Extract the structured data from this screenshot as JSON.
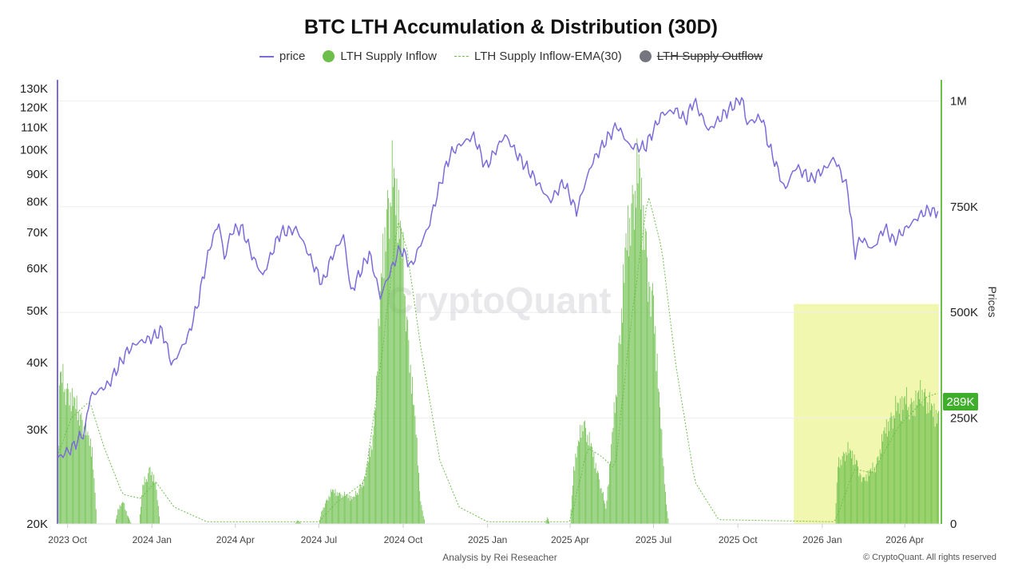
{
  "title": "BTC LTH Accumulation & Distribution (30D)",
  "legend": {
    "price": "price",
    "inflow": "LTH Supply Inflow",
    "ema": "LTH Supply Inflow-EMA(30)",
    "outflow": "LTH Supply Outflow"
  },
  "colors": {
    "price": "#7b6cd9",
    "inflow": "#6cbf4a",
    "ema": "#6cbf4a",
    "outflow": "#75757f",
    "highlight": "#f2f7b0",
    "badge": "#3fae2a"
  },
  "footer": {
    "analysis": "Analysis by Rei Reseacher",
    "copyright": "© CryptoQuant. All rights reserved"
  },
  "watermark": "CryptoQuant",
  "chart_data": {
    "type": "line+bar",
    "title": "BTC LTH Accumulation & Distribution (30D)",
    "xlabel": "",
    "x_ticks": [
      "2023 Oct",
      "2024 Jan",
      "2024 Apr",
      "2024 Jul",
      "2024 Oct",
      "2025 Jan",
      "2025 Apr",
      "2025 Jul",
      "2025 Oct",
      "2026 Jan",
      "2026 Apr"
    ],
    "x_range": [
      "2023-09-20",
      "2026-05-10"
    ],
    "left_axis": {
      "scale": "log",
      "range": [
        20000,
        135000
      ],
      "ticks": [
        "20K",
        "30K",
        "40K",
        "50K",
        "60K",
        "70K",
        "80K",
        "90K",
        "100K",
        "110K",
        "120K",
        "130K"
      ]
    },
    "right_axis": {
      "label": "Prices",
      "scale": "linear",
      "range": [
        0,
        1050000
      ],
      "ticks": [
        "0",
        "250K",
        "500K",
        "750K",
        "1M"
      ],
      "current_value_label": "289K"
    },
    "highlight_region": [
      "2025-12-01",
      "2026-05-08"
    ],
    "series": [
      {
        "name": "price",
        "type": "line",
        "axis": "left",
        "points": [
          [
            "2023-09-20",
            26500
          ],
          [
            "2023-10-05",
            27600
          ],
          [
            "2023-10-20",
            29800
          ],
          [
            "2023-10-25",
            34500
          ],
          [
            "2023-11-15",
            36500
          ],
          [
            "2023-12-05",
            42000
          ],
          [
            "2023-12-15",
            43500
          ],
          [
            "2024-01-01",
            44500
          ],
          [
            "2024-01-12",
            46000
          ],
          [
            "2024-01-23",
            39500
          ],
          [
            "2024-02-10",
            45000
          ],
          [
            "2024-02-20",
            51500
          ],
          [
            "2024-03-05",
            66500
          ],
          [
            "2024-03-14",
            73000
          ],
          [
            "2024-03-20",
            62500
          ],
          [
            "2024-03-28",
            70500
          ],
          [
            "2024-04-08",
            71500
          ],
          [
            "2024-04-19",
            63500
          ],
          [
            "2024-05-01",
            58000
          ],
          [
            "2024-05-20",
            70000
          ],
          [
            "2024-06-07",
            71000
          ],
          [
            "2024-06-25",
            61000
          ],
          [
            "2024-07-05",
            56000
          ],
          [
            "2024-07-15",
            63000
          ],
          [
            "2024-07-28",
            69000
          ],
          [
            "2024-08-05",
            54000
          ],
          [
            "2024-08-25",
            64000
          ],
          [
            "2024-09-06",
            53000
          ],
          [
            "2024-09-28",
            65500
          ],
          [
            "2024-10-10",
            60500
          ],
          [
            "2024-10-29",
            72000
          ],
          [
            "2024-11-12",
            88000
          ],
          [
            "2024-11-22",
            98500
          ],
          [
            "2024-12-05",
            103000
          ],
          [
            "2024-12-17",
            106000
          ],
          [
            "2024-12-30",
            92500
          ],
          [
            "2025-01-20",
            106500
          ],
          [
            "2025-02-03",
            97500
          ],
          [
            "2025-02-25",
            86500
          ],
          [
            "2025-03-10",
            80000
          ],
          [
            "2025-03-25",
            87000
          ],
          [
            "2025-04-08",
            76500
          ],
          [
            "2025-04-25",
            94500
          ],
          [
            "2025-05-10",
            104000
          ],
          [
            "2025-05-22",
            111000
          ],
          [
            "2025-06-05",
            101500
          ],
          [
            "2025-06-22",
            101000
          ],
          [
            "2025-07-10",
            116500
          ],
          [
            "2025-07-25",
            118500
          ],
          [
            "2025-08-05",
            113500
          ],
          [
            "2025-08-14",
            123500
          ],
          [
            "2025-08-30",
            108500
          ],
          [
            "2025-09-18",
            117500
          ],
          [
            "2025-10-06",
            125000
          ],
          [
            "2025-10-10",
            112000
          ],
          [
            "2025-10-27",
            115000
          ],
          [
            "2025-11-04",
            101500
          ],
          [
            "2025-11-21",
            84000
          ],
          [
            "2025-12-03",
            93000
          ],
          [
            "2025-12-20",
            88000
          ],
          [
            "2026-01-05",
            92500
          ],
          [
            "2026-01-14",
            96500
          ],
          [
            "2026-01-29",
            84000
          ],
          [
            "2026-02-05",
            63500
          ],
          [
            "2026-02-12",
            68500
          ],
          [
            "2026-02-25",
            65000
          ],
          [
            "2026-03-10",
            71500
          ],
          [
            "2026-03-20",
            67500
          ],
          [
            "2026-04-05",
            72000
          ],
          [
            "2026-04-20",
            76000
          ],
          [
            "2026-04-30",
            77500
          ],
          [
            "2026-05-04",
            75500
          ],
          [
            "2026-05-08",
            78500
          ]
        ]
      },
      {
        "name": "LTH Supply Inflow",
        "type": "bar",
        "axis": "right",
        "points": [
          [
            "2023-09-20",
            0
          ],
          [
            "2023-09-22",
            400000
          ],
          [
            "2023-10-01",
            360000
          ],
          [
            "2023-10-10",
            320000
          ],
          [
            "2023-10-20",
            260000
          ],
          [
            "2023-10-28",
            200000
          ],
          [
            "2023-11-02",
            0
          ],
          [
            "2023-11-22",
            0
          ],
          [
            "2023-11-25",
            40000
          ],
          [
            "2023-12-01",
            60000
          ],
          [
            "2023-12-05",
            25000
          ],
          [
            "2023-12-10",
            0
          ],
          [
            "2023-12-18",
            0
          ],
          [
            "2023-12-22",
            100000
          ],
          [
            "2023-12-30",
            150000
          ],
          [
            "2024-01-05",
            110000
          ],
          [
            "2024-01-10",
            0
          ],
          [
            "2024-06-05",
            0
          ],
          [
            "2024-06-08",
            10000
          ],
          [
            "2024-06-12",
            0
          ],
          [
            "2024-07-01",
            0
          ],
          [
            "2024-07-05",
            40000
          ],
          [
            "2024-07-15",
            90000
          ],
          [
            "2024-07-25",
            80000
          ],
          [
            "2024-08-08",
            70000
          ],
          [
            "2024-08-20",
            120000
          ],
          [
            "2024-08-30",
            250000
          ],
          [
            "2024-09-08",
            700000
          ],
          [
            "2024-09-15",
            880000
          ],
          [
            "2024-09-20",
            920000
          ],
          [
            "2024-09-25",
            880000
          ],
          [
            "2024-10-01",
            700000
          ],
          [
            "2024-10-08",
            450000
          ],
          [
            "2024-10-15",
            250000
          ],
          [
            "2024-10-20",
            60000
          ],
          [
            "2024-10-25",
            0
          ],
          [
            "2025-03-05",
            0
          ],
          [
            "2025-03-07",
            20000
          ],
          [
            "2025-03-10",
            0
          ],
          [
            "2025-04-01",
            0
          ],
          [
            "2025-04-05",
            150000
          ],
          [
            "2025-04-15",
            280000
          ],
          [
            "2025-04-25",
            200000
          ],
          [
            "2025-05-05",
            100000
          ],
          [
            "2025-05-10",
            40000
          ],
          [
            "2025-05-20",
            320000
          ],
          [
            "2025-06-01",
            750000
          ],
          [
            "2025-06-10",
            900000
          ],
          [
            "2025-06-15",
            950000
          ],
          [
            "2025-06-25",
            700000
          ],
          [
            "2025-07-01",
            600000
          ],
          [
            "2025-07-08",
            300000
          ],
          [
            "2025-07-15",
            50000
          ],
          [
            "2025-07-18",
            0
          ],
          [
            "2026-01-15",
            0
          ],
          [
            "2026-01-18",
            160000
          ],
          [
            "2026-01-28",
            200000
          ],
          [
            "2026-02-05",
            180000
          ],
          [
            "2026-02-15",
            120000
          ],
          [
            "2026-03-01",
            160000
          ],
          [
            "2026-03-10",
            250000
          ],
          [
            "2026-03-20",
            300000
          ],
          [
            "2026-03-30",
            330000
          ],
          [
            "2026-04-10",
            320000
          ],
          [
            "2026-04-20",
            360000
          ],
          [
            "2026-04-30",
            310000
          ],
          [
            "2026-05-08",
            289000
          ]
        ]
      },
      {
        "name": "LTH Supply Inflow-EMA(30)",
        "type": "line",
        "axis": "right",
        "style": "dashed",
        "points": [
          [
            "2023-09-20",
            160000
          ],
          [
            "2023-10-05",
            250000
          ],
          [
            "2023-10-25",
            290000
          ],
          [
            "2023-11-10",
            180000
          ],
          [
            "2023-11-30",
            70000
          ],
          [
            "2023-12-20",
            60000
          ],
          [
            "2024-01-05",
            100000
          ],
          [
            "2024-01-25",
            40000
          ],
          [
            "2024-03-01",
            5000
          ],
          [
            "2024-07-01",
            5000
          ],
          [
            "2024-07-20",
            50000
          ],
          [
            "2024-08-20",
            100000
          ],
          [
            "2024-09-05",
            350000
          ],
          [
            "2024-09-25",
            720000
          ],
          [
            "2024-10-05",
            650000
          ],
          [
            "2024-10-20",
            420000
          ],
          [
            "2024-11-10",
            150000
          ],
          [
            "2024-12-01",
            40000
          ],
          [
            "2025-01-01",
            5000
          ],
          [
            "2025-04-01",
            5000
          ],
          [
            "2025-04-20",
            180000
          ],
          [
            "2025-05-05",
            160000
          ],
          [
            "2025-05-20",
            130000
          ],
          [
            "2025-06-05",
            450000
          ],
          [
            "2025-06-25",
            780000
          ],
          [
            "2025-07-10",
            650000
          ],
          [
            "2025-07-25",
            380000
          ],
          [
            "2025-08-15",
            100000
          ],
          [
            "2025-09-10",
            10000
          ],
          [
            "2026-01-15",
            5000
          ],
          [
            "2026-02-05",
            130000
          ],
          [
            "2026-02-25",
            120000
          ],
          [
            "2026-03-25",
            230000
          ],
          [
            "2026-04-25",
            300000
          ],
          [
            "2026-05-08",
            310000
          ]
        ]
      },
      {
        "name": "LTH Supply Outflow",
        "type": "bar",
        "axis": "right",
        "hidden": true,
        "points": []
      }
    ]
  }
}
